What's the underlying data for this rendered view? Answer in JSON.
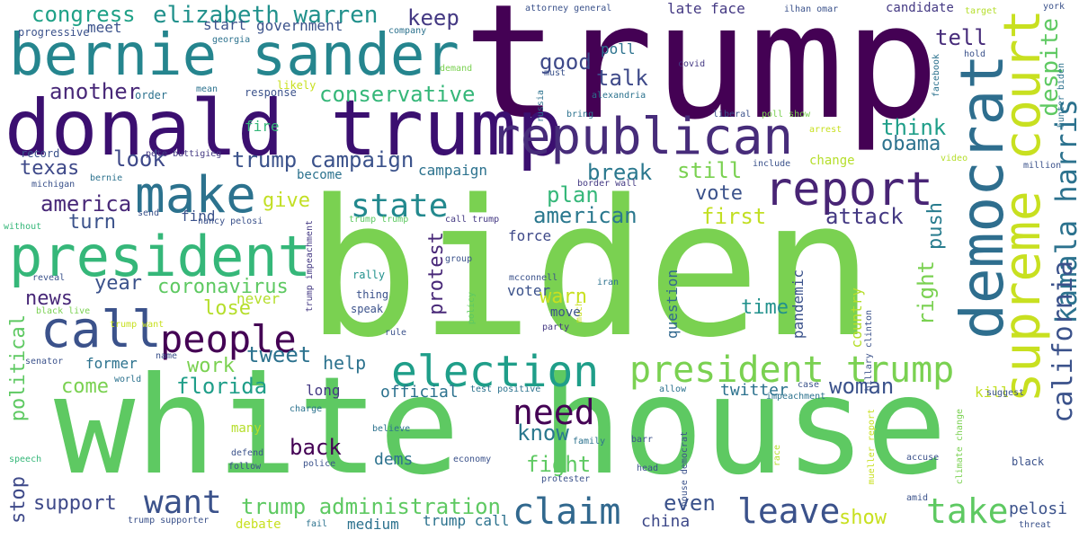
{
  "words": [
    {
      "text": "trump",
      "color": "#440154"
    },
    {
      "text": "biden",
      "color": "#7ad151"
    },
    {
      "text": "white house",
      "color": "#5ec962"
    },
    {
      "text": "donald trump",
      "color": "#3b0f70"
    },
    {
      "text": "bernie sander",
      "color": "#25858e"
    },
    {
      "text": "democrat",
      "color": "#2e6e8e"
    },
    {
      "text": "supreme court",
      "color": "#c8e020"
    },
    {
      "text": "republican",
      "color": "#472c7a"
    },
    {
      "text": "president",
      "color": "#35b779"
    },
    {
      "text": "call",
      "color": "#3b528b"
    },
    {
      "text": "make",
      "color": "#2c728e"
    },
    {
      "text": "report",
      "color": "#482475"
    },
    {
      "text": "election",
      "color": "#1f9e89"
    },
    {
      "text": "president trump",
      "color": "#7ad151"
    },
    {
      "text": "people",
      "color": "#440154"
    },
    {
      "text": "claim",
      "color": "#31688e"
    },
    {
      "text": "leave",
      "color": "#3b528b"
    },
    {
      "text": "take",
      "color": "#5ec962"
    },
    {
      "text": "need",
      "color": "#440154"
    },
    {
      "text": "state",
      "color": "#23898e"
    },
    {
      "text": "want",
      "color": "#3b528b"
    },
    {
      "text": "kamala harris",
      "color": "#2c728e"
    },
    {
      "text": "california",
      "color": "#3b528b"
    },
    {
      "text": "despite",
      "color": "#5ec962"
    },
    {
      "text": "elizabeth warren",
      "color": "#21918c"
    },
    {
      "text": "congress",
      "color": "#1fa187"
    },
    {
      "text": "conservative",
      "color": "#35b779"
    },
    {
      "text": "trump campaign",
      "color": "#3b528b"
    },
    {
      "text": "trump administration",
      "color": "#5ec962"
    },
    {
      "text": "coronavirus",
      "color": "#5ec962"
    },
    {
      "text": "america",
      "color": "#482878"
    },
    {
      "text": "american",
      "color": "#2a788e"
    },
    {
      "text": "another",
      "color": "#482878"
    },
    {
      "text": "texas",
      "color": "#3e4989"
    },
    {
      "text": "look",
      "color": "#3e4989"
    },
    {
      "text": "give",
      "color": "#c2df23"
    },
    {
      "text": "turn",
      "color": "#3b528b"
    },
    {
      "text": "news",
      "color": "#482878"
    },
    {
      "text": "year",
      "color": "#3b528b"
    },
    {
      "text": "lose",
      "color": "#b5de2b"
    },
    {
      "text": "work",
      "color": "#7ad151"
    },
    {
      "text": "tweet",
      "color": "#2c728e"
    },
    {
      "text": "help",
      "color": "#2c728e"
    },
    {
      "text": "florida",
      "color": "#1f9e89"
    },
    {
      "text": "come",
      "color": "#7ad151"
    },
    {
      "text": "woman",
      "color": "#3b528b"
    },
    {
      "text": "back",
      "color": "#440154"
    },
    {
      "text": "fight",
      "color": "#5ec962"
    },
    {
      "text": "know",
      "color": "#2a788e"
    },
    {
      "text": "support",
      "color": "#3e4989"
    },
    {
      "text": "political",
      "color": "#5ec962"
    },
    {
      "text": "stop",
      "color": "#3e4989"
    },
    {
      "text": "show",
      "color": "#c8e020"
    },
    {
      "text": "keep",
      "color": "#443983"
    },
    {
      "text": "tell",
      "color": "#472c7a"
    },
    {
      "text": "talk",
      "color": "#3e4989"
    },
    {
      "text": "good",
      "color": "#3e4989"
    },
    {
      "text": "think",
      "color": "#1f9e89"
    },
    {
      "text": "obama",
      "color": "#2c728e"
    },
    {
      "text": "break",
      "color": "#2a788e"
    },
    {
      "text": "still",
      "color": "#7ad151"
    },
    {
      "text": "plan",
      "color": "#35b779"
    },
    {
      "text": "vote",
      "color": "#3b528b"
    },
    {
      "text": "first",
      "color": "#c2df23"
    },
    {
      "text": "attack",
      "color": "#443983"
    },
    {
      "text": "push",
      "color": "#287c8e"
    },
    {
      "text": "right",
      "color": "#7ad151"
    },
    {
      "text": "protest",
      "color": "#482878"
    },
    {
      "text": "warn",
      "color": "#c8e020"
    },
    {
      "text": "time",
      "color": "#21918c"
    },
    {
      "text": "pandemic",
      "color": "#3b528b"
    },
    {
      "text": "country",
      "color": "#b5de2b"
    },
    {
      "text": "question",
      "color": "#31688e"
    },
    {
      "text": "even",
      "color": "#3b528b"
    },
    {
      "text": "china",
      "color": "#3e4989"
    },
    {
      "text": "long",
      "color": "#443983"
    },
    {
      "text": "official",
      "color": "#2c728e"
    },
    {
      "text": "dems",
      "color": "#2c728e"
    },
    {
      "text": "kill",
      "color": "#c2df23"
    },
    {
      "text": "twitter",
      "color": "#2c728e"
    },
    {
      "text": "pelosi",
      "color": "#3b528b"
    },
    {
      "text": "voter",
      "color": "#3b528b"
    },
    {
      "text": "force",
      "color": "#3e4989"
    },
    {
      "text": "find",
      "color": "#3b528b"
    },
    {
      "text": "campaign",
      "color": "#2c728e"
    },
    {
      "text": "former",
      "color": "#2c728e"
    },
    {
      "text": "never",
      "color": "#b5de2b"
    },
    {
      "text": "medium",
      "color": "#2c728e"
    },
    {
      "text": "trump call",
      "color": "#2c728e"
    },
    {
      "text": "debate",
      "color": "#c8e020"
    },
    {
      "text": "late face",
      "color": "#443983"
    },
    {
      "text": "candidate",
      "color": "#443983"
    },
    {
      "text": "start",
      "color": "#3b528b"
    },
    {
      "text": "government",
      "color": "#3b528b"
    },
    {
      "text": "meet",
      "color": "#3b528b"
    },
    {
      "text": "progressive",
      "color": "#3b528b"
    },
    {
      "text": "georgia",
      "color": "#2c728e"
    },
    {
      "text": "response",
      "color": "#3b528b"
    },
    {
      "text": "likely",
      "color": "#c8e020"
    },
    {
      "text": "fire",
      "color": "#35b779"
    },
    {
      "text": "become",
      "color": "#2c728e"
    },
    {
      "text": "poll",
      "color": "#2c728e"
    },
    {
      "text": "covid",
      "color": "#443983"
    },
    {
      "text": "order",
      "color": "#2c728e"
    },
    {
      "text": "mean",
      "color": "#2c728e"
    },
    {
      "text": "record",
      "color": "#3b528b"
    },
    {
      "text": "pete buttigieg",
      "color": "#443983"
    },
    {
      "text": "michigan",
      "color": "#3b528b"
    },
    {
      "text": "bernie",
      "color": "#2c728e"
    },
    {
      "text": "without",
      "color": "#35b779"
    },
    {
      "text": "send",
      "color": "#3b528b"
    },
    {
      "text": "nancy pelosi",
      "color": "#3b528b"
    },
    {
      "text": "border wall",
      "color": "#443983"
    },
    {
      "text": "call trump",
      "color": "#443983"
    },
    {
      "text": "trump trump",
      "color": "#5ec962"
    },
    {
      "text": "reveal",
      "color": "#3b528b"
    },
    {
      "text": "black live",
      "color": "#7ad151"
    },
    {
      "text": "trump want",
      "color": "#c8e020"
    },
    {
      "text": "trump impeachment",
      "color": "#443983"
    },
    {
      "text": "rally",
      "color": "#21918c"
    },
    {
      "text": "thing",
      "color": "#3b528b"
    },
    {
      "text": "speak",
      "color": "#3b528b"
    },
    {
      "text": "mcconnell",
      "color": "#3b528b"
    },
    {
      "text": "group",
      "color": "#3b528b"
    },
    {
      "text": "policy",
      "color": "#5ec962"
    },
    {
      "text": "much",
      "color": "#c8e020"
    },
    {
      "text": "iran",
      "color": "#2c728e"
    },
    {
      "text": "party",
      "color": "#443983"
    },
    {
      "text": "move",
      "color": "#3b528b"
    },
    {
      "text": "senator",
      "color": "#3b528b"
    },
    {
      "text": "name",
      "color": "#3b528b"
    },
    {
      "text": "world",
      "color": "#2c728e"
    },
    {
      "text": "charge",
      "color": "#2c728e"
    },
    {
      "text": "many",
      "color": "#b5de2b"
    },
    {
      "text": "defend",
      "color": "#3b528b"
    },
    {
      "text": "follow",
      "color": "#3b528b"
    },
    {
      "text": "police",
      "color": "#3b528b"
    },
    {
      "text": "rule",
      "color": "#3b528b"
    },
    {
      "text": "believe",
      "color": "#2c728e"
    },
    {
      "text": "family",
      "color": "#2c728e"
    },
    {
      "text": "economy",
      "color": "#3b528b"
    },
    {
      "text": "protester",
      "color": "#3b528b"
    },
    {
      "text": "test positive",
      "color": "#2c728e"
    },
    {
      "text": "barr",
      "color": "#3b528b"
    },
    {
      "text": "head",
      "color": "#3b528b"
    },
    {
      "text": "house democrat",
      "color": "#3b528b"
    },
    {
      "text": "allow",
      "color": "#2c728e"
    },
    {
      "text": "case",
      "color": "#3b528b"
    },
    {
      "text": "impeachment",
      "color": "#2c728e"
    },
    {
      "text": "race",
      "color": "#b5de2b"
    },
    {
      "text": "mueller report",
      "color": "#c8e020"
    },
    {
      "text": "climate change",
      "color": "#7ad151"
    },
    {
      "text": "accuse",
      "color": "#3b528b"
    },
    {
      "text": "amid",
      "color": "#3b528b"
    },
    {
      "text": "suggest",
      "color": "#3b528b"
    },
    {
      "text": "black",
      "color": "#3b528b"
    },
    {
      "text": "threat",
      "color": "#3b528b"
    },
    {
      "text": "speech",
      "color": "#35b779"
    },
    {
      "text": "fail",
      "color": "#2c728e"
    },
    {
      "text": "trump supporter",
      "color": "#3b528b"
    },
    {
      "text": "attorney general",
      "color": "#3b528b"
    },
    {
      "text": "company",
      "color": "#2c728e"
    },
    {
      "text": "ilhan omar",
      "color": "#3b528b"
    },
    {
      "text": "target",
      "color": "#b5de2b"
    },
    {
      "text": "york",
      "color": "#3b528b"
    },
    {
      "text": "hold",
      "color": "#3b528b"
    },
    {
      "text": "facebook",
      "color": "#2c728e"
    },
    {
      "text": "hunter biden",
      "color": "#2c728e"
    },
    {
      "text": "demand",
      "color": "#7ad151"
    },
    {
      "text": "must",
      "color": "#3b528b"
    },
    {
      "text": "alexandria",
      "color": "#2c728e"
    },
    {
      "text": "liberal",
      "color": "#3b528b"
    },
    {
      "text": "poll show",
      "color": "#7ad151"
    },
    {
      "text": "arrest",
      "color": "#c8e020"
    },
    {
      "text": "video",
      "color": "#b5de2b"
    },
    {
      "text": "bring",
      "color": "#2c728e"
    },
    {
      "text": "russia",
      "color": "#2c728e"
    },
    {
      "text": "include",
      "color": "#3b528b"
    },
    {
      "text": "million",
      "color": "#3b528b"
    },
    {
      "text": "hillary clinton",
      "color": "#3b528b"
    },
    {
      "text": "change",
      "color": "#b5de2b"
    }
  ]
}
